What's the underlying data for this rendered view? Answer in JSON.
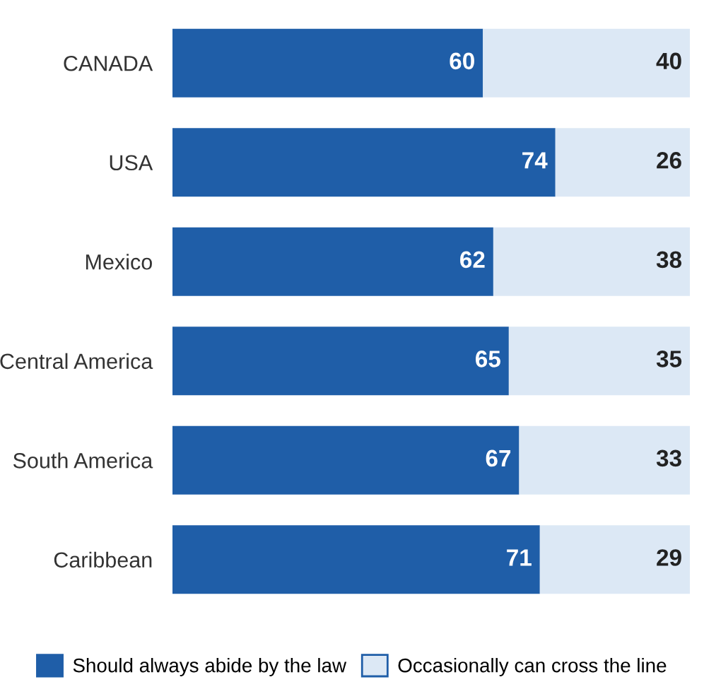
{
  "chart_data": {
    "type": "bar",
    "orientation": "horizontal",
    "stacked": true,
    "data_labels": true,
    "legend": "bottom",
    "grid": false,
    "categories": [
      "CANADA",
      "USA",
      "Mexico",
      "Central America",
      "South America",
      "Caribbean"
    ],
    "series": [
      {
        "name": "Should always abide by the law",
        "color": "#1f5ea8",
        "values": [
          60,
          74,
          62,
          65,
          67,
          71
        ]
      },
      {
        "name": "Occasionally can cross the line",
        "color": "#dce8f5",
        "values": [
          40,
          26,
          38,
          35,
          33,
          29
        ]
      }
    ]
  }
}
